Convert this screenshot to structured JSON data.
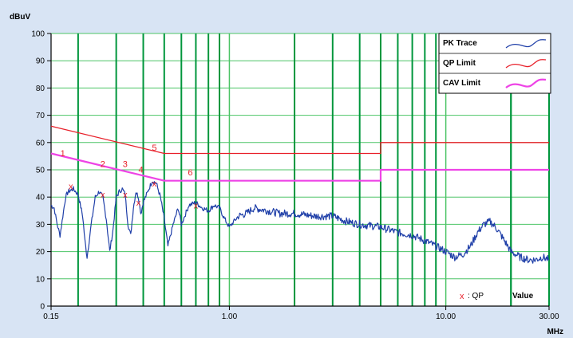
{
  "chart_data": {
    "type": "line",
    "y_unit": "dBuV",
    "x_unit": "MHz",
    "x_scale": "log",
    "xlim": [
      0.15,
      30
    ],
    "ylim": [
      0,
      100
    ],
    "y_ticks": [
      0,
      10,
      20,
      30,
      40,
      50,
      60,
      70,
      80,
      90,
      100
    ],
    "y_tick_labels": [
      "0",
      "10",
      "20",
      "30",
      "40",
      "50",
      "60",
      "70",
      "80",
      "90",
      "100"
    ],
    "x_ticks": [
      0.15,
      1,
      10,
      30
    ],
    "x_tick_labels": [
      "0.15",
      "1.00",
      "10.00",
      "30.00"
    ],
    "grid": true,
    "legend_position": "top-right",
    "colors": {
      "plot_bg": "#ffffff",
      "frame_bg": "#d8e4f4",
      "grid_major": "#00963c",
      "grid_minor": "#4cc466",
      "pk_trace": "#1f3fa8",
      "qp_limit": "#e8202a",
      "cav_limit": "#ee44e6",
      "qp_marker": "#e8202a"
    },
    "series": [
      {
        "name": "PK Trace",
        "x": [
          0.15,
          0.155,
          0.16,
          0.165,
          0.17,
          0.175,
          0.18,
          0.19,
          0.2,
          0.21,
          0.215,
          0.22,
          0.23,
          0.24,
          0.25,
          0.26,
          0.27,
          0.28,
          0.29,
          0.3,
          0.31,
          0.32,
          0.33,
          0.34,
          0.35,
          0.36,
          0.37,
          0.38,
          0.39,
          0.4,
          0.42,
          0.44,
          0.46,
          0.48,
          0.5,
          0.52,
          0.55,
          0.58,
          0.6,
          0.65,
          0.7,
          0.75,
          0.8,
          0.85,
          0.9,
          0.95,
          1.0,
          1.1,
          1.2,
          1.3,
          1.5,
          1.7,
          2.0,
          2.5,
          3.0,
          3.5,
          4.0,
          5.0,
          6.0,
          7.0,
          8.0,
          9.0,
          10.0,
          11.0,
          12.0,
          13.0,
          14.0,
          15.0,
          16.0,
          17.0,
          18.0,
          19.0,
          20.0,
          22.0,
          24.0,
          26.0,
          28.0,
          30.0
        ],
        "values": [
          37,
          36,
          30,
          26,
          33,
          40,
          42,
          43,
          41,
          33,
          24,
          18,
          30,
          40,
          42,
          40,
          32,
          20,
          28,
          40,
          42,
          43,
          41,
          30,
          26,
          36,
          42,
          40,
          34,
          38,
          42,
          46,
          45,
          40,
          32,
          22,
          30,
          36,
          30,
          37,
          38,
          36,
          35,
          37,
          36,
          32,
          29,
          33,
          34,
          36,
          35,
          34,
          34,
          33,
          33,
          31,
          30,
          29,
          27,
          26,
          24,
          22,
          20,
          18,
          19,
          22,
          27,
          30,
          31,
          29,
          26,
          23,
          20,
          18,
          17,
          17,
          18,
          17
        ]
      },
      {
        "name": "QP Limit",
        "x": [
          0.15,
          0.5,
          0.5,
          5.0,
          5.0,
          30.0
        ],
        "values": [
          66,
          56,
          56,
          56,
          60,
          60
        ]
      },
      {
        "name": "CAV Limit",
        "x": [
          0.15,
          0.5,
          0.5,
          5.0,
          5.0,
          30.0
        ],
        "values": [
          56,
          46,
          46,
          46,
          50,
          50
        ]
      }
    ],
    "markers": [
      {
        "label": "1",
        "x": 0.17,
        "y": 55
      },
      {
        "label": "2",
        "x": 0.26,
        "y": 51
      },
      {
        "label": "3",
        "x": 0.33,
        "y": 51
      },
      {
        "label": "4",
        "x": 0.39,
        "y": 49
      },
      {
        "label": "5",
        "x": 0.45,
        "y": 57
      },
      {
        "label": "6",
        "x": 0.66,
        "y": 48
      }
    ],
    "qp_points": [
      {
        "x": 0.185,
        "y": 44
      },
      {
        "x": 0.26,
        "y": 41
      },
      {
        "x": 0.33,
        "y": 41
      },
      {
        "x": 0.38,
        "y": 38
      },
      {
        "x": 0.45,
        "y": 45
      },
      {
        "x": 0.7,
        "y": 37
      }
    ],
    "legend": [
      {
        "label": "PK Trace",
        "series": "PK Trace"
      },
      {
        "label": "QP Limit",
        "series": "QP Limit"
      },
      {
        "label": "CAV Limit",
        "series": "CAV Limit"
      }
    ],
    "annotation": {
      "marker_symbol": "x",
      "text": ": QP",
      "value_label": "Value"
    }
  }
}
